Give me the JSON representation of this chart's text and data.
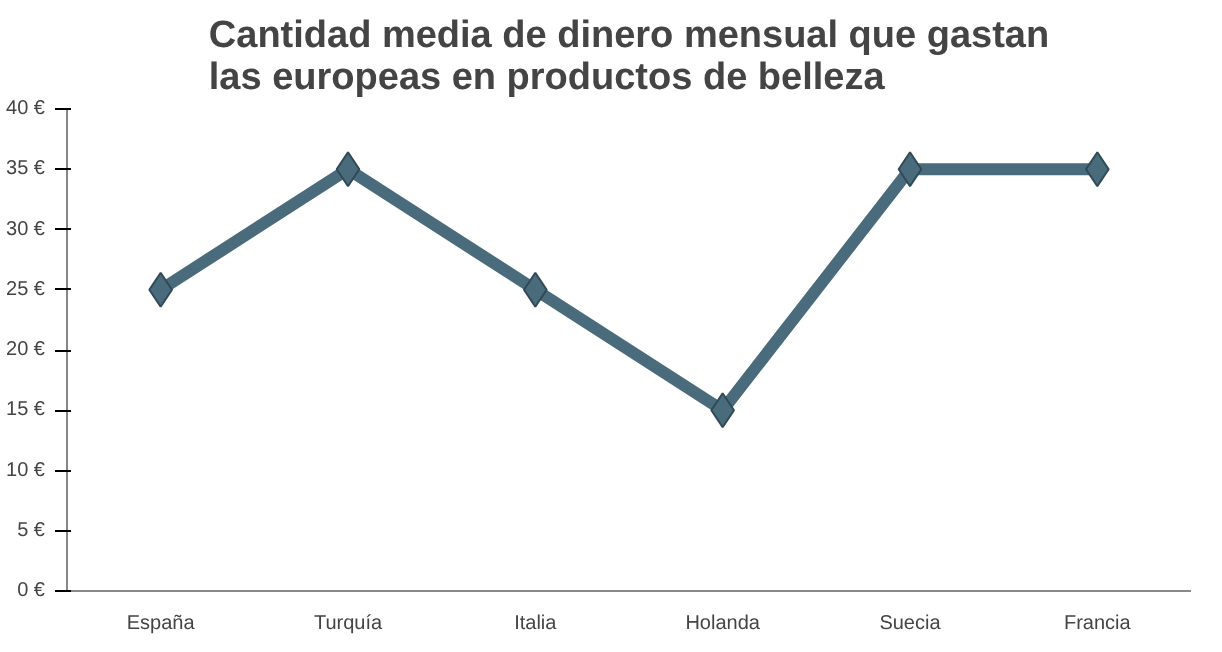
{
  "chart_data": {
    "type": "line",
    "title": "Cantidad media de dinero mensual que gastan\nlas europeas en productos de belleza",
    "categories": [
      "España",
      "Turquía",
      "Italia",
      "Holanda",
      "Suecia",
      "Francia"
    ],
    "series": [
      {
        "color": "#4a6b7c",
        "values": [
          25,
          35,
          25,
          15,
          35,
          35
        ]
      }
    ],
    "ylim": [
      0,
      40
    ],
    "yticks": [
      {
        "value": 0,
        "label": "0 €"
      },
      {
        "value": 5,
        "label": "5 €"
      },
      {
        "value": 10,
        "label": "10 €"
      },
      {
        "value": 15,
        "label": "15 €"
      },
      {
        "value": 20,
        "label": "20 €"
      },
      {
        "value": 25,
        "label": "25 €"
      },
      {
        "value": 30,
        "label": "30 €"
      },
      {
        "value": 35,
        "label": "35 €"
      },
      {
        "value": 40,
        "label": "40 €"
      }
    ],
    "grid": false,
    "marker": "diamond",
    "line_style": "solid"
  }
}
